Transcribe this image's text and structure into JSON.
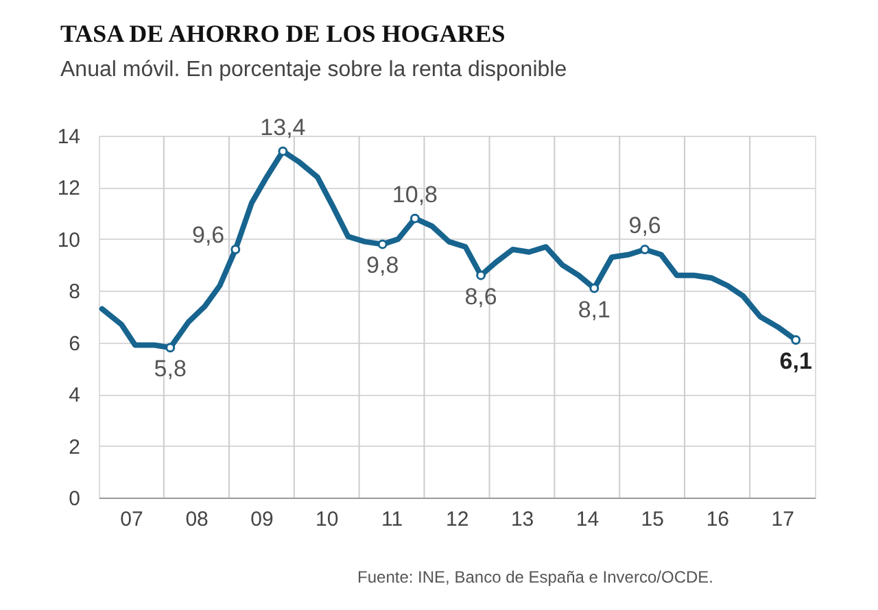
{
  "chart_data": {
    "type": "line",
    "title": "TASA DE AHORRO DE LOS HOGARES",
    "subtitle": "Anual móvil. En porcentaje sobre la renta disponible",
    "x": [
      "2007-01-19",
      "2007-05-08",
      "2007-07-24",
      "2007-11-10",
      "2008-02-06",
      "2008-05-19",
      "2008-08-18",
      "2008-11-10",
      "2009-02-06",
      "2009-05-08",
      "2009-07-31",
      "2009-10-30",
      "2010-01-26",
      "2010-05-12",
      "2010-08-04",
      "2010-10-31",
      "2011-02-03",
      "2011-05-12",
      "2011-08-08",
      "2011-11-10",
      "2012-02-14",
      "2012-05-19",
      "2012-08-19",
      "2012-11-14",
      "2013-02-06",
      "2013-05-12",
      "2013-08-11",
      "2013-11-14",
      "2014-02-14",
      "2014-05-16",
      "2014-08-12",
      "2014-11-18",
      "2015-02-21",
      "2015-05-23",
      "2015-08-22",
      "2015-11-18",
      "2016-02-21",
      "2016-05-30",
      "2016-08-29",
      "2016-11-24",
      "2017-02-28",
      "2017-06-07",
      "2017-09-16"
    ],
    "series": [
      {
        "color": "#17648f",
        "values": [
          7.3,
          6.7,
          5.9,
          5.9,
          5.8,
          6.8,
          7.4,
          8.2,
          9.6,
          11.4,
          12.4,
          13.4,
          13.0,
          12.4,
          11.3,
          10.1,
          9.9,
          9.8,
          10.0,
          10.8,
          10.5,
          9.9,
          9.7,
          8.6,
          9.1,
          9.6,
          9.5,
          9.7,
          9.0,
          8.6,
          8.1,
          9.3,
          9.4,
          9.6,
          9.4,
          8.6,
          8.6,
          8.5,
          8.2,
          7.8,
          7.0,
          6.6,
          6.1
        ]
      }
    ],
    "xlim": [
      "2007-01-01",
      "2018-01-01"
    ],
    "xticks": [
      {
        "value": "2007-07-01",
        "label": "07"
      },
      {
        "value": "2008-01-01",
        "label": null
      },
      {
        "value": "2008-07-01",
        "label": "08"
      },
      {
        "value": "2009-01-01",
        "label": null
      },
      {
        "value": "2009-07-01",
        "label": "09"
      },
      {
        "value": "2010-01-01",
        "label": null
      },
      {
        "value": "2010-07-01",
        "label": "10"
      },
      {
        "value": "2011-01-01",
        "label": null
      },
      {
        "value": "2011-07-01",
        "label": "11"
      },
      {
        "value": "2012-01-01",
        "label": null
      },
      {
        "value": "2012-07-01",
        "label": "12"
      },
      {
        "value": "2013-01-01",
        "label": null
      },
      {
        "value": "2013-07-01",
        "label": "13"
      },
      {
        "value": "2014-01-01",
        "label": null
      },
      {
        "value": "2014-07-01",
        "label": "14"
      },
      {
        "value": "2015-01-01",
        "label": null
      },
      {
        "value": "2015-07-01",
        "label": "15"
      },
      {
        "value": "2016-01-01",
        "label": null
      },
      {
        "value": "2016-07-01",
        "label": "16"
      },
      {
        "value": "2017-01-01",
        "label": null
      },
      {
        "value": "2017-07-01",
        "label": "17"
      }
    ],
    "ylim": [
      0,
      14
    ],
    "yticks": [
      0,
      2,
      4,
      6,
      8,
      10,
      12,
      14
    ],
    "grid": true,
    "marker": "none",
    "line_style": "solid",
    "annotations": [
      {
        "text": "5,8",
        "x": "2008-02-06",
        "y": 5.8
      },
      {
        "text": "9,6",
        "x": "2009-02-06",
        "y": 9.6
      },
      {
        "text": "13,4",
        "x": "2009-10-30",
        "y": 13.4
      },
      {
        "text": "9,8",
        "x": "2011-05-12",
        "y": 9.8
      },
      {
        "text": "10,8",
        "x": "2011-11-10",
        "y": 10.8
      },
      {
        "text": "8,6",
        "x": "2012-11-14",
        "y": 8.6
      },
      {
        "text": "8,1",
        "x": "2014-08-12",
        "y": 8.1
      },
      {
        "text": "9,6",
        "x": "2015-05-23",
        "y": 9.6
      },
      {
        "text": "6,1",
        "x": "2017-09-16",
        "y": 6.1
      },
      "Fuente: INE, Banco de España e Inverco/OCDE."
    ]
  }
}
